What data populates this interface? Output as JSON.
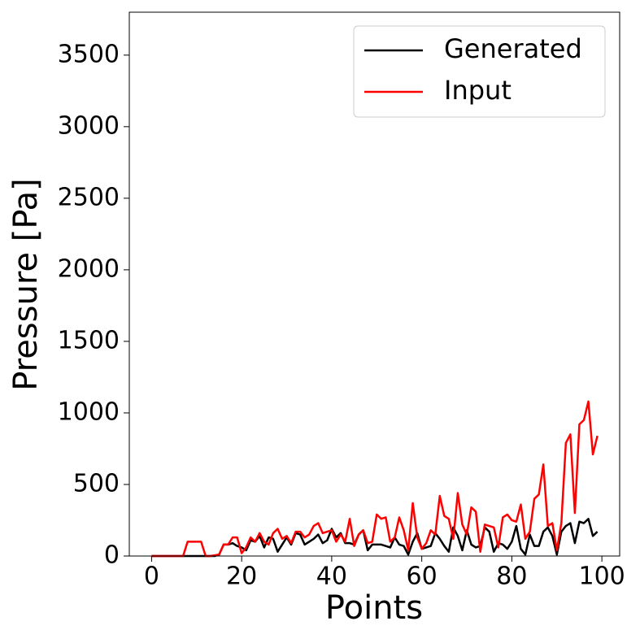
{
  "chart_data": {
    "type": "line",
    "xlabel": "Points",
    "ylabel": "Pressure [Pa]",
    "x": [
      0,
      1,
      2,
      3,
      4,
      5,
      6,
      7,
      8,
      9,
      10,
      11,
      12,
      13,
      14,
      15,
      16,
      17,
      18,
      19,
      20,
      21,
      22,
      23,
      24,
      25,
      26,
      27,
      28,
      29,
      30,
      31,
      32,
      33,
      34,
      35,
      36,
      37,
      38,
      39,
      40,
      41,
      42,
      43,
      44,
      45,
      46,
      47,
      48,
      49,
      50,
      51,
      52,
      53,
      54,
      55,
      56,
      57,
      58,
      59,
      60,
      61,
      62,
      63,
      64,
      65,
      66,
      67,
      68,
      69,
      70,
      71,
      72,
      73,
      74,
      75,
      76,
      77,
      78,
      79,
      80,
      81,
      82,
      83,
      84,
      85,
      86,
      87,
      88,
      89,
      90,
      91,
      92,
      93,
      94,
      95,
      96,
      97,
      98,
      99
    ],
    "series": [
      {
        "name": "Generated",
        "color": "#000000",
        "values": [
          0,
          0,
          0,
          0,
          0,
          0,
          0,
          0,
          0,
          0,
          0,
          0,
          0,
          0,
          0,
          10,
          80,
          80,
          90,
          70,
          60,
          40,
          110,
          100,
          140,
          60,
          130,
          120,
          30,
          80,
          130,
          80,
          160,
          150,
          80,
          100,
          120,
          150,
          90,
          110,
          190,
          130,
          160,
          90,
          90,
          80,
          150,
          180,
          40,
          80,
          80,
          80,
          70,
          60,
          130,
          80,
          70,
          10,
          100,
          160,
          50,
          60,
          70,
          160,
          120,
          70,
          30,
          200,
          140,
          40,
          180,
          80,
          60,
          70,
          200,
          170,
          30,
          90,
          80,
          50,
          100,
          210,
          50,
          10,
          150,
          70,
          70,
          170,
          200,
          140,
          10,
          170,
          210,
          230,
          90,
          240,
          230,
          260,
          140,
          170
        ]
      },
      {
        "name": "Input",
        "color": "#ff0000",
        "values": [
          0,
          0,
          0,
          0,
          0,
          0,
          0,
          0,
          100,
          100,
          100,
          100,
          0,
          0,
          5,
          10,
          80,
          80,
          130,
          130,
          20,
          60,
          130,
          100,
          160,
          100,
          80,
          160,
          190,
          120,
          140,
          90,
          170,
          170,
          130,
          150,
          210,
          230,
          160,
          170,
          180,
          100,
          150,
          100,
          260,
          70,
          150,
          180,
          90,
          100,
          290,
          260,
          270,
          100,
          130,
          270,
          180,
          40,
          370,
          130,
          50,
          90,
          180,
          150,
          420,
          280,
          260,
          120,
          440,
          220,
          150,
          340,
          310,
          30,
          220,
          210,
          200,
          60,
          270,
          290,
          250,
          240,
          360,
          120,
          170,
          400,
          430,
          640,
          210,
          230,
          40,
          230,
          790,
          850,
          300,
          920,
          950,
          1080,
          710,
          840
        ]
      }
    ],
    "xlim": [
      -4.95,
      103.95
    ],
    "xticks": [
      0,
      20,
      40,
      60,
      80,
      100
    ],
    "ylim": [
      0,
      3800
    ],
    "yticks": [
      0,
      500,
      1000,
      1500,
      2000,
      2500,
      3000,
      3500
    ],
    "grid": false,
    "legend": "upper right"
  }
}
